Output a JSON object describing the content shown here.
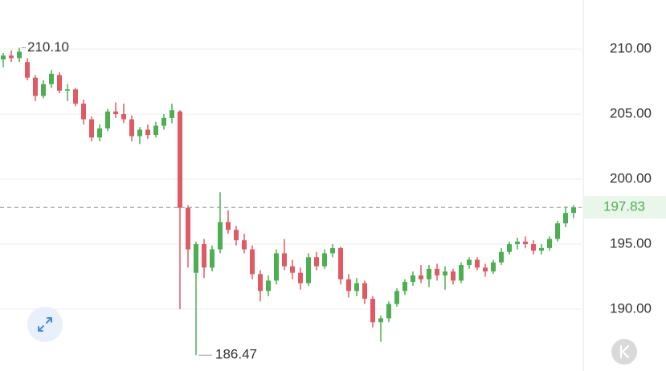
{
  "chart_data": {
    "type": "candlestick",
    "open": [
      209.2,
      209.5,
      209.3,
      209.0,
      207.8,
      206.4,
      207.3,
      208.0,
      206.8,
      206.9,
      205.8,
      204.6,
      203.2,
      203.9,
      205.2,
      205.0,
      204.6,
      203.3,
      203.8,
      203.4,
      204.1,
      204.7,
      205.2,
      197.8,
      192.8,
      195.0,
      193.2,
      194.6,
      196.7,
      196.1,
      195.3,
      194.6,
      192.7,
      191.4,
      192.2,
      194.3,
      193.3,
      192.8,
      192.0,
      194.0,
      193.3,
      194.3,
      194.7,
      192.3,
      191.4,
      192.0,
      190.8,
      189.0,
      189.3,
      190.4,
      191.4,
      192.1,
      192.6,
      192.3,
      193.1,
      192.6,
      192.9,
      192.2,
      193.4,
      193.8,
      193.2,
      192.9,
      193.6,
      194.4,
      195.0,
      195.2,
      195.0,
      194.5,
      194.7,
      195.4,
      196.6,
      197.4
    ],
    "high": [
      209.7,
      209.9,
      210.1,
      209.3,
      208.0,
      207.6,
      208.4,
      208.2,
      207.3,
      207.0,
      206.1,
      204.8,
      204.2,
      205.4,
      205.9,
      205.8,
      204.9,
      204.0,
      204.2,
      204.4,
      205.0,
      205.8,
      205.3,
      198.0,
      195.2,
      195.4,
      194.9,
      199.0,
      197.6,
      196.4,
      195.8,
      194.9,
      193.0,
      192.6,
      194.6,
      195.4,
      193.8,
      193.2,
      194.3,
      194.4,
      194.6,
      195.0,
      194.8,
      192.7,
      192.4,
      192.2,
      191.0,
      189.5,
      190.6,
      191.6,
      192.3,
      192.9,
      193.4,
      193.4,
      193.5,
      193.3,
      193.1,
      193.6,
      194.0,
      194.0,
      193.5,
      193.8,
      194.7,
      195.2,
      195.5,
      195.6,
      195.3,
      195.0,
      195.6,
      196.8,
      197.9,
      198.0
    ],
    "low": [
      208.6,
      209.0,
      209.0,
      207.6,
      206.0,
      206.2,
      207.0,
      206.6,
      206.0,
      205.6,
      204.2,
      202.9,
      202.9,
      203.7,
      204.7,
      204.3,
      202.9,
      202.7,
      203.1,
      203.2,
      203.8,
      204.3,
      190.0,
      193.2,
      186.47,
      192.4,
      192.9,
      194.3,
      195.8,
      194.9,
      194.3,
      192.3,
      190.6,
      191.0,
      191.9,
      193.0,
      192.3,
      191.5,
      191.8,
      193.0,
      193.1,
      194.0,
      191.9,
      190.9,
      191.0,
      190.4,
      188.6,
      187.5,
      189.0,
      190.2,
      191.1,
      191.8,
      192.0,
      191.7,
      192.2,
      191.5,
      191.9,
      192.0,
      193.1,
      193.0,
      192.5,
      192.7,
      193.4,
      194.2,
      194.6,
      194.7,
      194.2,
      194.2,
      194.5,
      195.2,
      196.3,
      197.0
    ],
    "close": [
      209.5,
      209.3,
      209.8,
      207.8,
      206.4,
      207.3,
      208.1,
      206.8,
      206.9,
      205.8,
      204.6,
      203.2,
      203.9,
      205.2,
      205.0,
      204.6,
      203.3,
      203.8,
      203.4,
      204.1,
      204.7,
      205.3,
      197.8,
      194.6,
      195.0,
      193.2,
      194.6,
      196.7,
      196.1,
      195.3,
      194.6,
      192.7,
      191.4,
      192.2,
      194.3,
      193.3,
      192.8,
      192.0,
      194.0,
      193.3,
      194.3,
      194.7,
      192.3,
      191.4,
      192.0,
      190.8,
      189.0,
      189.3,
      190.4,
      191.4,
      192.1,
      192.6,
      192.3,
      193.1,
      192.6,
      192.9,
      192.2,
      193.4,
      193.8,
      193.2,
      192.9,
      193.6,
      194.4,
      195.0,
      195.2,
      195.0,
      194.5,
      194.7,
      195.4,
      196.6,
      197.4,
      197.83
    ],
    "up_color": "#4caf50",
    "down_color": "#e05a63",
    "ylim": [
      185.25,
      213.77
    ],
    "yticks": [
      {
        "value": 190,
        "label": "190.00"
      },
      {
        "value": 195,
        "label": "195.00"
      },
      {
        "value": 200,
        "label": "200.00"
      },
      {
        "value": 205,
        "label": "205.00"
      },
      {
        "value": 210,
        "label": "210.00"
      }
    ],
    "grid": true,
    "max_label": {
      "value": 210.1,
      "label": "210.10"
    },
    "min_label": {
      "value": 186.47,
      "label": "186.47"
    },
    "last_price": {
      "value": 197.83,
      "label": "197.83"
    }
  }
}
